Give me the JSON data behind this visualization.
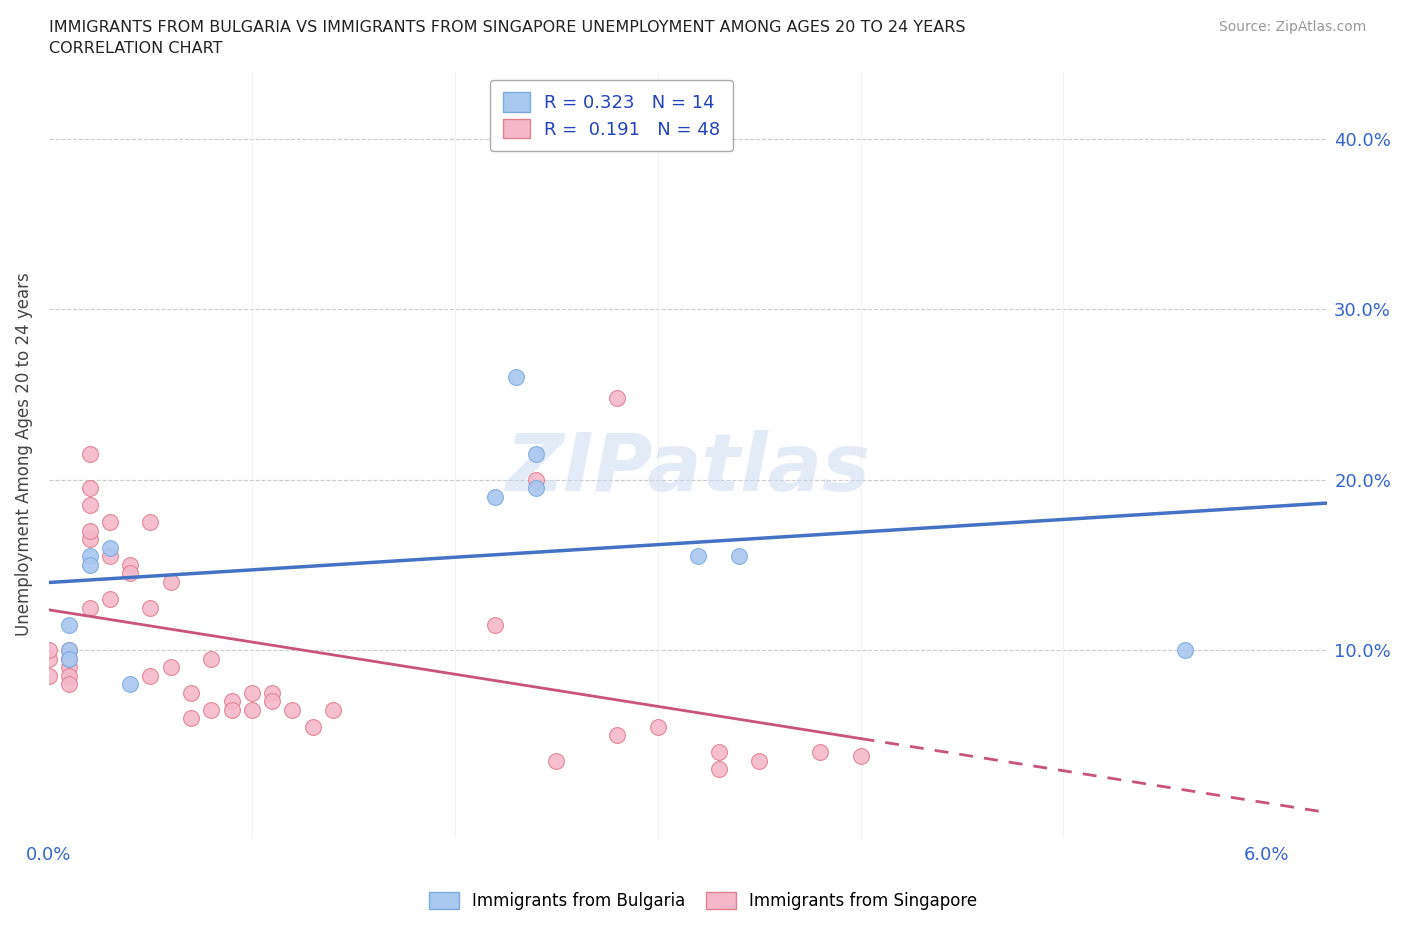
{
  "title_line1": "IMMIGRANTS FROM BULGARIA VS IMMIGRANTS FROM SINGAPORE UNEMPLOYMENT AMONG AGES 20 TO 24 YEARS",
  "title_line2": "CORRELATION CHART",
  "source": "Source: ZipAtlas.com",
  "ylabel": "Unemployment Among Ages 20 to 24 years",
  "watermark": "ZIPatlas",
  "bulgaria_color": "#a8c8f0",
  "bulgaria_edge": "#7aaade",
  "singapore_color": "#f5b8cb",
  "singapore_edge": "#e08090",
  "trend_bulgaria_color": "#4472c4",
  "trend_singapore_color": "#c9547a",
  "R_bulgaria": 0.323,
  "N_bulgaria": 14,
  "R_singapore": 0.191,
  "N_singapore": 48,
  "xlim": [
    0.0,
    0.063
  ],
  "ylim": [
    -0.01,
    0.44
  ],
  "yticks": [
    0.0,
    0.1,
    0.2,
    0.3,
    0.4
  ],
  "ytick_labels_right": [
    "",
    "10.0%",
    "20.0%",
    "30.0%",
    "40.0%"
  ],
  "xticks": [
    0.0,
    0.01,
    0.02,
    0.03,
    0.04,
    0.05,
    0.06
  ],
  "xtick_labels": [
    "0.0%",
    "",
    "",
    "",
    "",
    "",
    "6.0%"
  ],
  "bulgaria_x": [
    0.001,
    0.001,
    0.001,
    0.002,
    0.002,
    0.003,
    0.004,
    0.022,
    0.023,
    0.024,
    0.024,
    0.032,
    0.034,
    0.056
  ],
  "bulgaria_y": [
    0.115,
    0.1,
    0.095,
    0.155,
    0.15,
    0.16,
    0.08,
    0.19,
    0.26,
    0.215,
    0.195,
    0.155,
    0.155,
    0.1
  ],
  "singapore_x": [
    0.0,
    0.0,
    0.0,
    0.001,
    0.001,
    0.001,
    0.001,
    0.001,
    0.002,
    0.002,
    0.002,
    0.002,
    0.002,
    0.002,
    0.003,
    0.003,
    0.003,
    0.004,
    0.004,
    0.005,
    0.005,
    0.005,
    0.006,
    0.006,
    0.007,
    0.007,
    0.008,
    0.008,
    0.009,
    0.009,
    0.01,
    0.01,
    0.011,
    0.011,
    0.012,
    0.013,
    0.014,
    0.022,
    0.024,
    0.025,
    0.028,
    0.03,
    0.033,
    0.033,
    0.035,
    0.038,
    0.04,
    0.028
  ],
  "singapore_y": [
    0.085,
    0.095,
    0.1,
    0.09,
    0.1,
    0.095,
    0.085,
    0.08,
    0.125,
    0.165,
    0.195,
    0.185,
    0.17,
    0.215,
    0.13,
    0.155,
    0.175,
    0.15,
    0.145,
    0.125,
    0.175,
    0.085,
    0.14,
    0.09,
    0.06,
    0.075,
    0.065,
    0.095,
    0.07,
    0.065,
    0.075,
    0.065,
    0.075,
    0.07,
    0.065,
    0.055,
    0.065,
    0.115,
    0.2,
    0.035,
    0.05,
    0.055,
    0.03,
    0.04,
    0.035,
    0.04,
    0.038,
    0.248
  ]
}
